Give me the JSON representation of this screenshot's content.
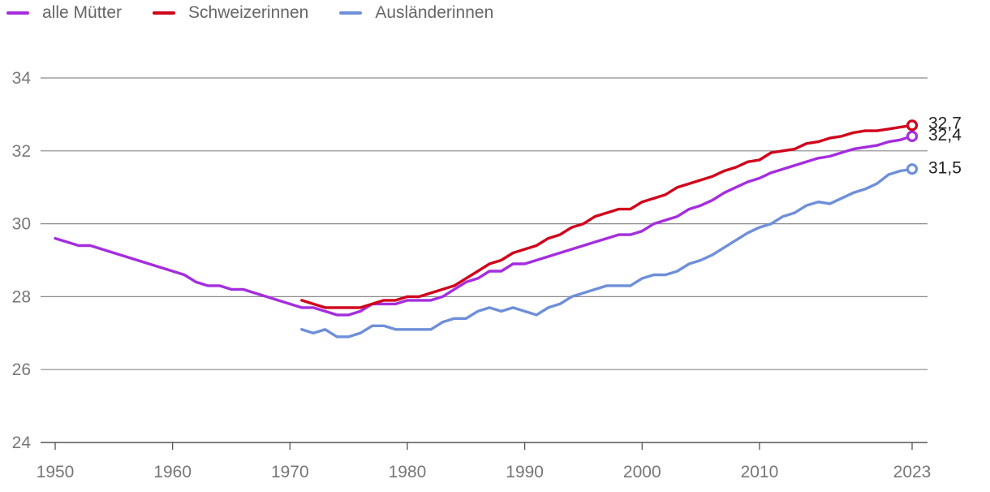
{
  "chart_data": {
    "type": "line",
    "title": "",
    "xlabel": "",
    "ylabel": "",
    "xlim": [
      1950,
      2023
    ],
    "ylim": [
      24,
      34
    ],
    "yticks": [
      24,
      26,
      28,
      30,
      32,
      34
    ],
    "xticks": [
      1950,
      1960,
      1970,
      1980,
      1990,
      2000,
      2010,
      2023
    ],
    "legend_position": "top-left",
    "grid": true,
    "series": [
      {
        "key": "alle",
        "name": "alle Mütter",
        "color": "#a52dde",
        "end_label": "32,4",
        "points": [
          [
            1950,
            29.6
          ],
          [
            1951,
            29.5
          ],
          [
            1952,
            29.4
          ],
          [
            1953,
            29.4
          ],
          [
            1954,
            29.3
          ],
          [
            1955,
            29.2
          ],
          [
            1956,
            29.1
          ],
          [
            1957,
            29.0
          ],
          [
            1958,
            28.9
          ],
          [
            1959,
            28.8
          ],
          [
            1960,
            28.7
          ],
          [
            1961,
            28.6
          ],
          [
            1962,
            28.4
          ],
          [
            1963,
            28.3
          ],
          [
            1964,
            28.3
          ],
          [
            1965,
            28.2
          ],
          [
            1966,
            28.2
          ],
          [
            1967,
            28.1
          ],
          [
            1968,
            28.0
          ],
          [
            1969,
            27.9
          ],
          [
            1970,
            27.8
          ],
          [
            1971,
            27.7
          ],
          [
            1972,
            27.7
          ],
          [
            1973,
            27.6
          ],
          [
            1974,
            27.5
          ],
          [
            1975,
            27.5
          ],
          [
            1976,
            27.6
          ],
          [
            1977,
            27.8
          ],
          [
            1978,
            27.8
          ],
          [
            1979,
            27.8
          ],
          [
            1980,
            27.9
          ],
          [
            1981,
            27.9
          ],
          [
            1982,
            27.9
          ],
          [
            1983,
            28.0
          ],
          [
            1984,
            28.2
          ],
          [
            1985,
            28.4
          ],
          [
            1986,
            28.5
          ],
          [
            1987,
            28.7
          ],
          [
            1988,
            28.7
          ],
          [
            1989,
            28.9
          ],
          [
            1990,
            28.9
          ],
          [
            1991,
            29.0
          ],
          [
            1992,
            29.1
          ],
          [
            1993,
            29.2
          ],
          [
            1994,
            29.3
          ],
          [
            1995,
            29.4
          ],
          [
            1996,
            29.5
          ],
          [
            1997,
            29.6
          ],
          [
            1998,
            29.7
          ],
          [
            1999,
            29.7
          ],
          [
            2000,
            29.8
          ],
          [
            2001,
            30.0
          ],
          [
            2002,
            30.1
          ],
          [
            2003,
            30.2
          ],
          [
            2004,
            30.4
          ],
          [
            2005,
            30.5
          ],
          [
            2006,
            30.65
          ],
          [
            2007,
            30.85
          ],
          [
            2008,
            31.0
          ],
          [
            2009,
            31.15
          ],
          [
            2010,
            31.25
          ],
          [
            2011,
            31.4
          ],
          [
            2012,
            31.5
          ],
          [
            2013,
            31.6
          ],
          [
            2014,
            31.7
          ],
          [
            2015,
            31.8
          ],
          [
            2016,
            31.85
          ],
          [
            2017,
            31.95
          ],
          [
            2018,
            32.05
          ],
          [
            2019,
            32.1
          ],
          [
            2020,
            32.15
          ],
          [
            2021,
            32.25
          ],
          [
            2022,
            32.3
          ],
          [
            2023,
            32.4
          ]
        ]
      },
      {
        "key": "schweiz",
        "name": "Schweizerinnen",
        "color": "#d0021b",
        "end_label": "32,7",
        "points": [
          [
            1971,
            27.9
          ],
          [
            1972,
            27.8
          ],
          [
            1973,
            27.7
          ],
          [
            1974,
            27.7
          ],
          [
            1975,
            27.7
          ],
          [
            1976,
            27.7
          ],
          [
            1977,
            27.8
          ],
          [
            1978,
            27.9
          ],
          [
            1979,
            27.9
          ],
          [
            1980,
            28.0
          ],
          [
            1981,
            28.0
          ],
          [
            1982,
            28.1
          ],
          [
            1983,
            28.2
          ],
          [
            1984,
            28.3
          ],
          [
            1985,
            28.5
          ],
          [
            1986,
            28.7
          ],
          [
            1987,
            28.9
          ],
          [
            1988,
            29.0
          ],
          [
            1989,
            29.2
          ],
          [
            1990,
            29.3
          ],
          [
            1991,
            29.4
          ],
          [
            1992,
            29.6
          ],
          [
            1993,
            29.7
          ],
          [
            1994,
            29.9
          ],
          [
            1995,
            30.0
          ],
          [
            1996,
            30.2
          ],
          [
            1997,
            30.3
          ],
          [
            1998,
            30.4
          ],
          [
            1999,
            30.4
          ],
          [
            2000,
            30.6
          ],
          [
            2001,
            30.7
          ],
          [
            2002,
            30.8
          ],
          [
            2003,
            31.0
          ],
          [
            2004,
            31.1
          ],
          [
            2005,
            31.2
          ],
          [
            2006,
            31.3
          ],
          [
            2007,
            31.45
          ],
          [
            2008,
            31.55
          ],
          [
            2009,
            31.7
          ],
          [
            2010,
            31.75
          ],
          [
            2011,
            31.95
          ],
          [
            2012,
            32.0
          ],
          [
            2013,
            32.05
          ],
          [
            2014,
            32.2
          ],
          [
            2015,
            32.25
          ],
          [
            2016,
            32.35
          ],
          [
            2017,
            32.4
          ],
          [
            2018,
            32.5
          ],
          [
            2019,
            32.55
          ],
          [
            2020,
            32.55
          ],
          [
            2021,
            32.6
          ],
          [
            2022,
            32.65
          ],
          [
            2023,
            32.7
          ]
        ]
      },
      {
        "key": "ausland",
        "name": "Ausländerinnen",
        "color": "#6e8fd9",
        "end_label": "31,5",
        "points": [
          [
            1971,
            27.1
          ],
          [
            1972,
            27.0
          ],
          [
            1973,
            27.1
          ],
          [
            1974,
            26.9
          ],
          [
            1975,
            26.9
          ],
          [
            1976,
            27.0
          ],
          [
            1977,
            27.2
          ],
          [
            1978,
            27.2
          ],
          [
            1979,
            27.1
          ],
          [
            1980,
            27.1
          ],
          [
            1981,
            27.1
          ],
          [
            1982,
            27.1
          ],
          [
            1983,
            27.3
          ],
          [
            1984,
            27.4
          ],
          [
            1985,
            27.4
          ],
          [
            1986,
            27.6
          ],
          [
            1987,
            27.7
          ],
          [
            1988,
            27.6
          ],
          [
            1989,
            27.7
          ],
          [
            1990,
            27.6
          ],
          [
            1991,
            27.5
          ],
          [
            1992,
            27.7
          ],
          [
            1993,
            27.8
          ],
          [
            1994,
            28.0
          ],
          [
            1995,
            28.1
          ],
          [
            1996,
            28.2
          ],
          [
            1997,
            28.3
          ],
          [
            1998,
            28.3
          ],
          [
            1999,
            28.3
          ],
          [
            2000,
            28.5
          ],
          [
            2001,
            28.6
          ],
          [
            2002,
            28.6
          ],
          [
            2003,
            28.7
          ],
          [
            2004,
            28.9
          ],
          [
            2005,
            29.0
          ],
          [
            2006,
            29.15
          ],
          [
            2007,
            29.35
          ],
          [
            2008,
            29.55
          ],
          [
            2009,
            29.75
          ],
          [
            2010,
            29.9
          ],
          [
            2011,
            30.0
          ],
          [
            2012,
            30.2
          ],
          [
            2013,
            30.3
          ],
          [
            2014,
            30.5
          ],
          [
            2015,
            30.6
          ],
          [
            2016,
            30.55
          ],
          [
            2017,
            30.7
          ],
          [
            2018,
            30.85
          ],
          [
            2019,
            30.95
          ],
          [
            2020,
            31.1
          ],
          [
            2021,
            31.35
          ],
          [
            2022,
            31.45
          ],
          [
            2023,
            31.5
          ]
        ]
      }
    ]
  }
}
